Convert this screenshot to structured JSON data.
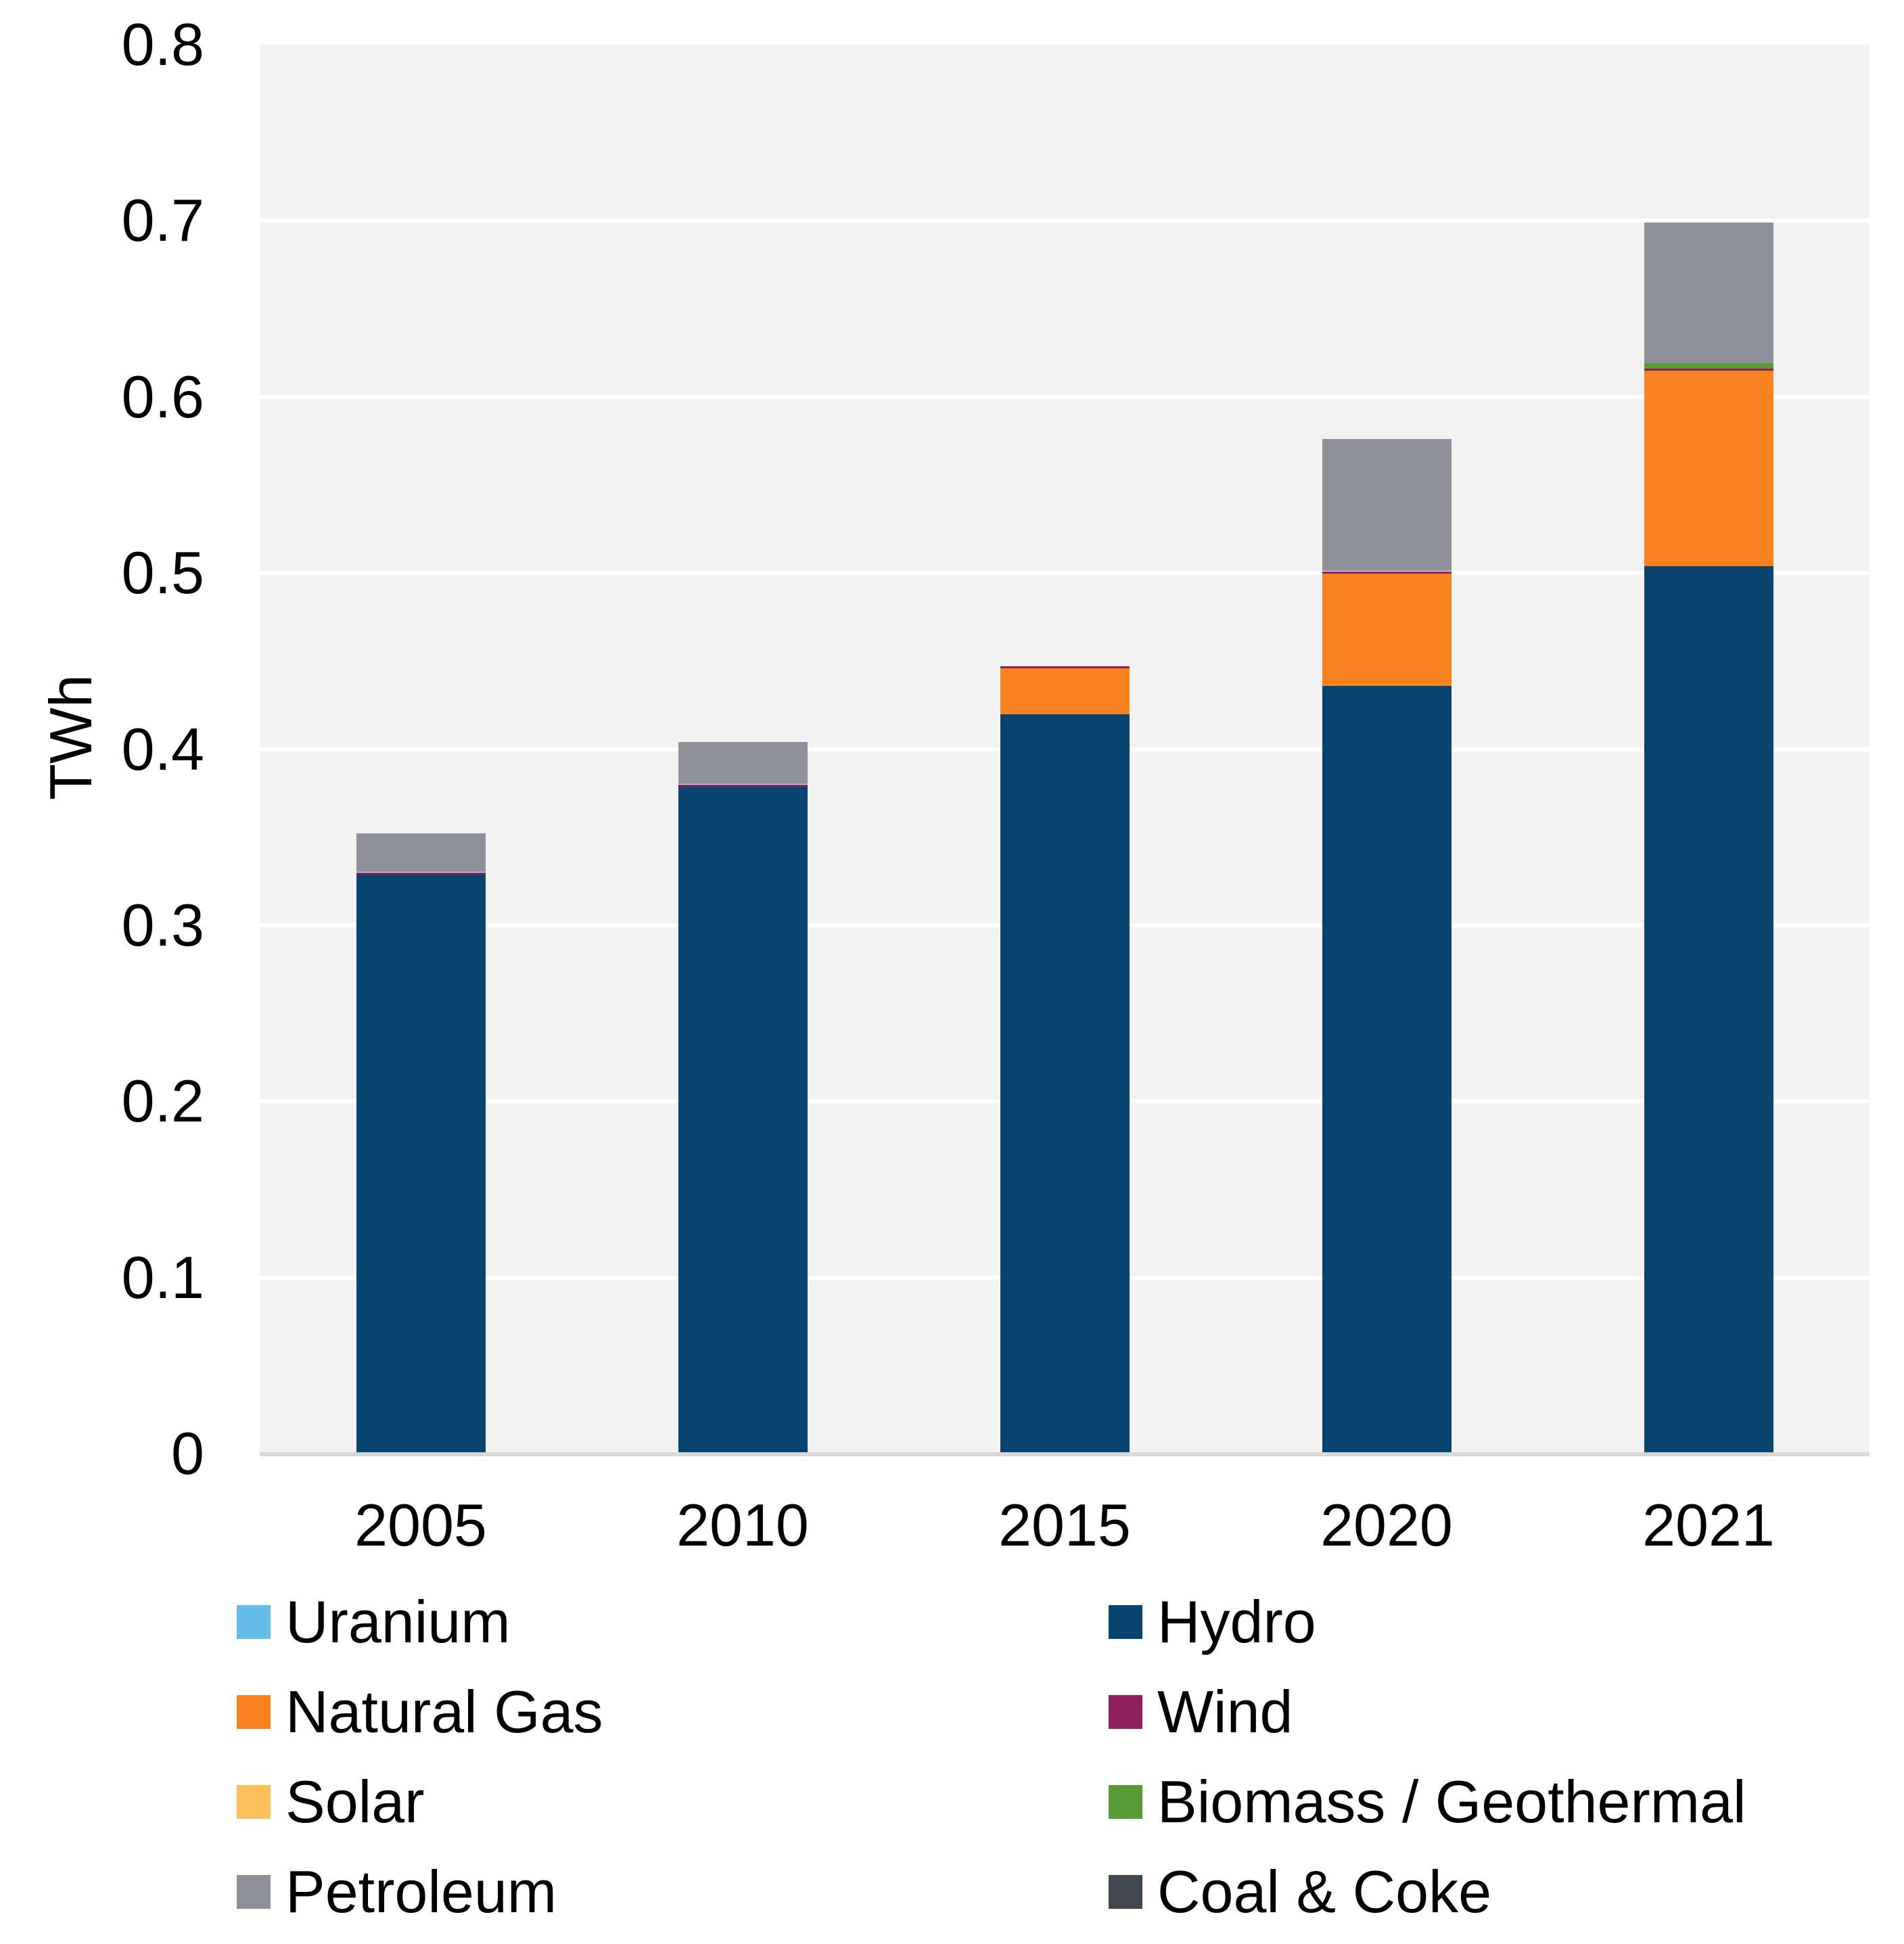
{
  "chart_data": {
    "type": "bar",
    "stacked": true,
    "title": "",
    "xlabel": "",
    "ylabel": "TWh",
    "ylim": [
      0,
      0.8
    ],
    "ytick_step": 0.1,
    "yticks": [
      "0",
      "0.1",
      "0.2",
      "0.3",
      "0.4",
      "0.5",
      "0.6",
      "0.7",
      "0.8"
    ],
    "categories": [
      "2005",
      "2010",
      "2015",
      "2020",
      "2021"
    ],
    "series": [
      {
        "name": "Uranium",
        "color": "#63BDE8",
        "values": [
          0,
          0,
          0,
          0,
          0
        ]
      },
      {
        "name": "Hydro",
        "color": "#084470",
        "values": [
          0.329,
          0.379,
          0.42,
          0.436,
          0.504
        ]
      },
      {
        "name": "Natural Gas",
        "color": "#F8821F",
        "values": [
          0,
          0,
          0.026,
          0.064,
          0.111
        ]
      },
      {
        "name": "Wind",
        "color": "#8E1F5E",
        "values": [
          0.001,
          0.001,
          0.001,
          0.001,
          0.001
        ]
      },
      {
        "name": "Solar",
        "color": "#FBC158",
        "values": [
          0,
          0,
          0,
          0,
          0
        ]
      },
      {
        "name": "Biomass / Geothermal",
        "color": "#579C33",
        "values": [
          0,
          0,
          0,
          0,
          0.003
        ]
      },
      {
        "name": "Petroleum",
        "color": "#8F909A",
        "values": [
          0.022,
          0.024,
          0,
          0.075,
          0.08
        ]
      },
      {
        "name": "Coal & Coke",
        "color": "#42474F",
        "values": [
          0,
          0,
          0,
          0,
          0
        ]
      }
    ],
    "totals": [
      0.352,
      0.404,
      0.447,
      0.576,
      0.699
    ],
    "grid": "horizontal",
    "legend_position": "bottom-two-columns"
  },
  "style": {
    "plot_bg": "#F2F2F2",
    "gridline": "#FFFFFF",
    "axis_line": "#D9D9D9",
    "text_color": "#000000"
  }
}
